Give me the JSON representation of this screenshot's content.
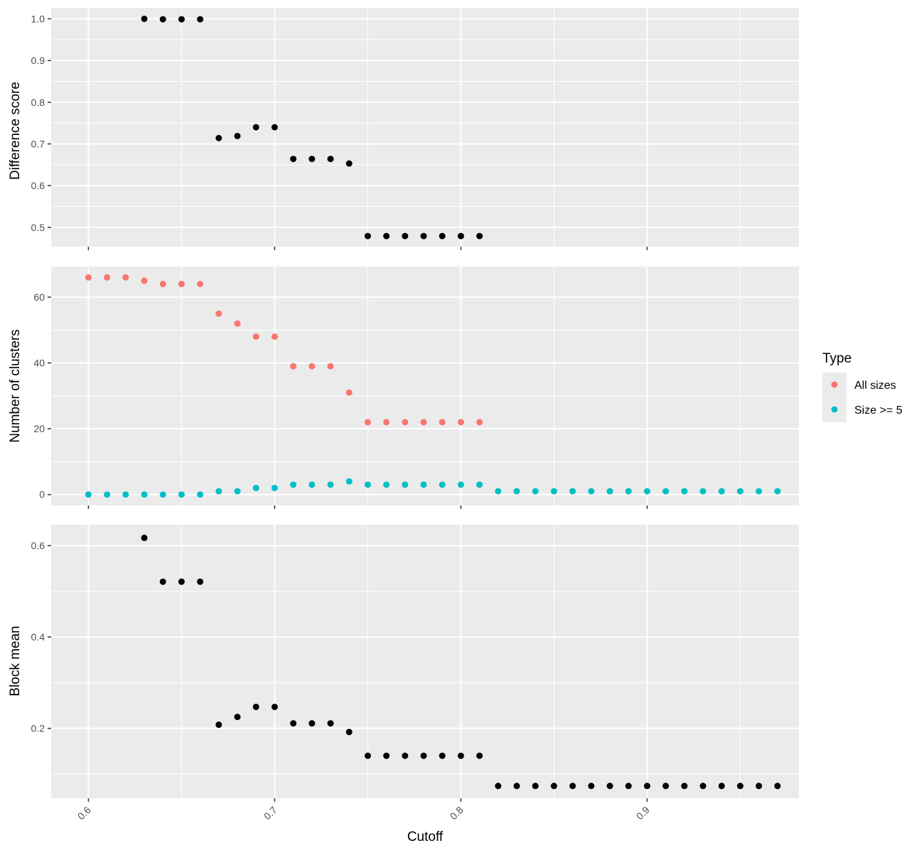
{
  "chart_data": [
    {
      "type": "scatter",
      "xlabel": "",
      "ylabel": "Difference score",
      "xlim": [
        0.58,
        0.9815
      ],
      "ylim": [
        0.4536,
        1.0264
      ],
      "x_ticks": [
        "0.6",
        "0.7",
        "0.8",
        "0.9"
      ],
      "y_ticks": [
        "0.5",
        "0.6",
        "0.7",
        "0.8",
        "0.9",
        "1.0"
      ],
      "grid": true,
      "series": [
        {
          "color": "#000000",
          "points": [
            [
              0.63,
              1.0
            ],
            [
              0.64,
              0.999
            ],
            [
              0.65,
              0.999
            ],
            [
              0.66,
              0.999
            ],
            [
              0.67,
              0.714
            ],
            [
              0.68,
              0.719
            ],
            [
              0.69,
              0.74
            ],
            [
              0.7,
              0.74
            ],
            [
              0.71,
              0.664
            ],
            [
              0.72,
              0.664
            ],
            [
              0.73,
              0.664
            ],
            [
              0.74,
              0.653
            ],
            [
              0.75,
              0.479
            ],
            [
              0.76,
              0.479
            ],
            [
              0.77,
              0.479
            ],
            [
              0.78,
              0.479
            ],
            [
              0.79,
              0.479
            ],
            [
              0.8,
              0.479
            ],
            [
              0.81,
              0.479
            ]
          ]
        }
      ]
    },
    {
      "type": "scatter",
      "xlabel": "",
      "ylabel": "Number of clusters",
      "xlim": [
        0.58,
        0.9815
      ],
      "ylim": [
        -3.3,
        69.3
      ],
      "x_ticks": [
        "0.6",
        "0.7",
        "0.8",
        "0.9"
      ],
      "y_ticks": [
        "0",
        "20",
        "40",
        "60"
      ],
      "grid": true,
      "legend": {
        "title": "Type",
        "position": "right",
        "entries": [
          {
            "label": "All sizes",
            "color": "#F8766D"
          },
          {
            "label": "Size >= 5",
            "color": "#00BFC4"
          }
        ]
      },
      "series": [
        {
          "name": "All sizes",
          "color": "#F8766D",
          "points": [
            [
              0.6,
              66
            ],
            [
              0.61,
              66
            ],
            [
              0.62,
              66
            ],
            [
              0.63,
              65
            ],
            [
              0.64,
              64
            ],
            [
              0.65,
              64
            ],
            [
              0.66,
              64
            ],
            [
              0.67,
              55
            ],
            [
              0.68,
              52
            ],
            [
              0.69,
              48
            ],
            [
              0.7,
              48
            ],
            [
              0.71,
              39
            ],
            [
              0.72,
              39
            ],
            [
              0.73,
              39
            ],
            [
              0.74,
              31
            ],
            [
              0.75,
              22
            ],
            [
              0.76,
              22
            ],
            [
              0.77,
              22
            ],
            [
              0.78,
              22
            ],
            [
              0.79,
              22
            ],
            [
              0.8,
              22
            ],
            [
              0.81,
              22
            ]
          ]
        },
        {
          "name": "Size >= 5",
          "color": "#00BFC4",
          "points": [
            [
              0.6,
              0
            ],
            [
              0.61,
              0
            ],
            [
              0.62,
              0
            ],
            [
              0.63,
              0
            ],
            [
              0.64,
              0
            ],
            [
              0.65,
              0
            ],
            [
              0.66,
              0
            ],
            [
              0.67,
              1
            ],
            [
              0.68,
              1
            ],
            [
              0.69,
              2
            ],
            [
              0.7,
              2
            ],
            [
              0.71,
              3
            ],
            [
              0.72,
              3
            ],
            [
              0.73,
              3
            ],
            [
              0.74,
              4
            ],
            [
              0.75,
              3
            ],
            [
              0.76,
              3
            ],
            [
              0.77,
              3
            ],
            [
              0.78,
              3
            ],
            [
              0.79,
              3
            ],
            [
              0.8,
              3
            ],
            [
              0.81,
              3
            ],
            [
              0.82,
              1
            ],
            [
              0.83,
              1
            ],
            [
              0.84,
              1
            ],
            [
              0.85,
              1
            ],
            [
              0.86,
              1
            ],
            [
              0.87,
              1
            ],
            [
              0.88,
              1
            ],
            [
              0.89,
              1
            ],
            [
              0.9,
              1
            ],
            [
              0.91,
              1
            ],
            [
              0.92,
              1
            ],
            [
              0.93,
              1
            ],
            [
              0.94,
              1
            ],
            [
              0.95,
              1
            ],
            [
              0.96,
              1
            ],
            [
              0.97,
              1
            ]
          ]
        }
      ]
    },
    {
      "type": "scatter",
      "xlabel": "Cutoff",
      "ylabel": "Block mean",
      "xlim": [
        0.58,
        0.9815
      ],
      "ylim": [
        0.047,
        0.646
      ],
      "x_ticks": [
        "0.6",
        "0.7",
        "0.8",
        "0.9"
      ],
      "y_ticks": [
        "0.2",
        "0.4",
        "0.6"
      ],
      "grid": true,
      "series": [
        {
          "color": "#000000",
          "points": [
            [
              0.63,
              0.617
            ],
            [
              0.64,
              0.521
            ],
            [
              0.65,
              0.521
            ],
            [
              0.66,
              0.521
            ],
            [
              0.67,
              0.208
            ],
            [
              0.68,
              0.225
            ],
            [
              0.69,
              0.247
            ],
            [
              0.7,
              0.247
            ],
            [
              0.71,
              0.211
            ],
            [
              0.72,
              0.211
            ],
            [
              0.73,
              0.211
            ],
            [
              0.74,
              0.192
            ],
            [
              0.75,
              0.14
            ],
            [
              0.76,
              0.14
            ],
            [
              0.77,
              0.14
            ],
            [
              0.78,
              0.14
            ],
            [
              0.79,
              0.14
            ],
            [
              0.8,
              0.14
            ],
            [
              0.81,
              0.14
            ],
            [
              0.82,
              0.074
            ],
            [
              0.83,
              0.074
            ],
            [
              0.84,
              0.074
            ],
            [
              0.85,
              0.074
            ],
            [
              0.86,
              0.074
            ],
            [
              0.87,
              0.074
            ],
            [
              0.88,
              0.074
            ],
            [
              0.89,
              0.074
            ],
            [
              0.9,
              0.074
            ],
            [
              0.91,
              0.074
            ],
            [
              0.92,
              0.074
            ],
            [
              0.93,
              0.074
            ],
            [
              0.94,
              0.074
            ],
            [
              0.95,
              0.074
            ],
            [
              0.96,
              0.074
            ],
            [
              0.97,
              0.074
            ]
          ]
        }
      ]
    }
  ]
}
